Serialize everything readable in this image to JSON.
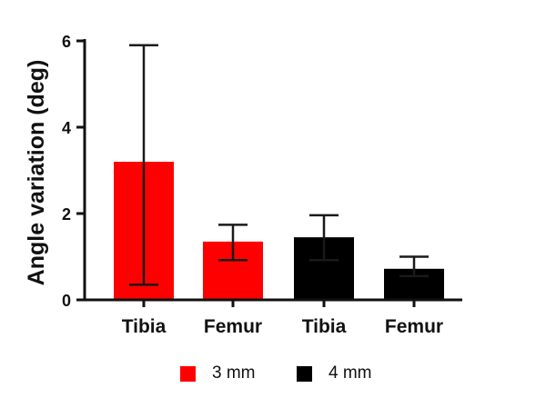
{
  "chart_data": {
    "type": "bar",
    "ylabel": "Angle variation (deg)",
    "xlabel": "",
    "ylim": [
      0,
      6
    ],
    "yticks": [
      "0",
      "2",
      "4",
      "6"
    ],
    "categories": [
      "Tibia",
      "Femur",
      "Tibia",
      "Femur"
    ],
    "bars": [
      {
        "category": "Tibia",
        "series": "3 mm",
        "value": 3.2,
        "err_low": 0.35,
        "err_high": 5.9
      },
      {
        "category": "Femur",
        "series": "3 mm",
        "value": 1.35,
        "err_low": 0.92,
        "err_high": 1.74
      },
      {
        "category": "Tibia",
        "series": "4 mm",
        "value": 1.45,
        "err_low": 0.92,
        "err_high": 1.96
      },
      {
        "category": "Femur",
        "series": "4 mm",
        "value": 0.72,
        "err_low": 0.55,
        "err_high": 1.0
      }
    ],
    "series": [
      {
        "name": "3 mm",
        "color": "#ff0000"
      },
      {
        "name": "4 mm",
        "color": "#000000"
      }
    ],
    "legend_position": "bottom",
    "grid": false
  }
}
